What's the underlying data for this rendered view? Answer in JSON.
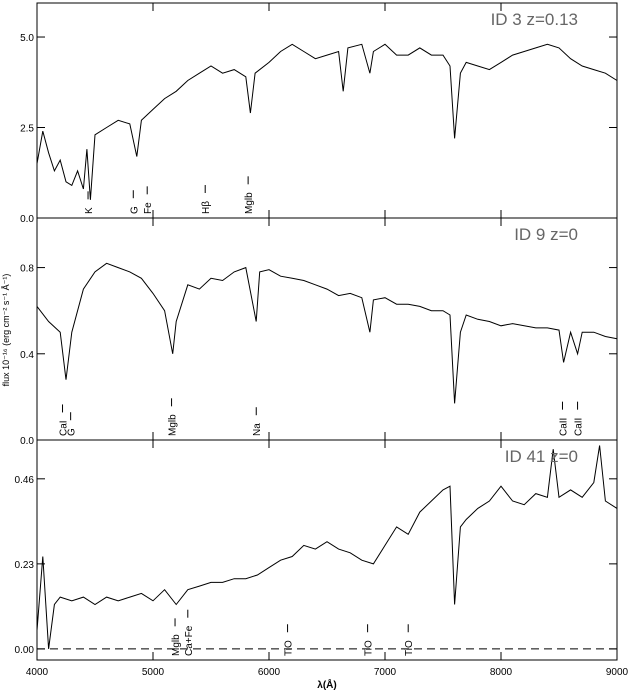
{
  "chart_data": [
    {
      "type": "line",
      "title": "ID 3  z=0.13",
      "color": "#000000",
      "xlim": [
        4000,
        9000
      ],
      "ylim": [
        0,
        5.94
      ],
      "yticks": [
        {
          "value": 0,
          "label": "0.0"
        },
        2.5,
        {
          "value": 5,
          "label": "5.0"
        }
      ],
      "x": [
        4000,
        4050,
        4100,
        4150,
        4200,
        4250,
        4300,
        4350,
        4400,
        4430,
        4460,
        4500,
        4600,
        4700,
        4800,
        4860,
        4900,
        5000,
        5100,
        5200,
        5300,
        5400,
        5500,
        5600,
        5700,
        5800,
        5840,
        5880,
        6000,
        6100,
        6200,
        6300,
        6400,
        6500,
        6600,
        6640,
        6680,
        6800,
        6870,
        6900,
        7000,
        7100,
        7200,
        7300,
        7400,
        7500,
        7560,
        7600,
        7650,
        7700,
        7800,
        7900,
        8000,
        8100,
        8200,
        8300,
        8400,
        8500,
        8600,
        8700,
        8800,
        8900,
        9000
      ],
      "values": [
        1.5,
        2.4,
        1.8,
        1.3,
        1.6,
        1.0,
        0.9,
        1.3,
        0.8,
        1.9,
        0.5,
        2.3,
        2.5,
        2.7,
        2.6,
        1.7,
        2.7,
        3.0,
        3.3,
        3.5,
        3.8,
        4.0,
        4.2,
        4.0,
        4.1,
        3.9,
        2.9,
        4.0,
        4.3,
        4.6,
        4.8,
        4.6,
        4.4,
        4.5,
        4.6,
        3.5,
        4.7,
        4.8,
        4.0,
        4.6,
        4.8,
        4.5,
        4.5,
        4.7,
        4.5,
        4.5,
        4.2,
        2.2,
        4.0,
        4.3,
        4.2,
        4.1,
        4.3,
        4.5,
        4.6,
        4.7,
        4.8,
        4.7,
        4.4,
        4.2,
        4.1,
        4.0,
        3.8
      ],
      "lines": [
        {
          "label": "K",
          "x": 4440
        },
        {
          "label": "G",
          "x": 4830
        },
        {
          "label": "Fe",
          "x": 4950
        },
        {
          "label": "Hβ",
          "x": 5450
        },
        {
          "label": "Mglb",
          "x": 5820
        }
      ]
    },
    {
      "type": "line",
      "title": "ID 9  z=0",
      "color": "#000000",
      "ylabel": "flux 10⁻¹⁶ (erg cm⁻² s⁻¹ Å⁻¹)",
      "xlim": [
        4000,
        9000
      ],
      "ylim": [
        0,
        1.03
      ],
      "yticks": [
        {
          "value": 0,
          "label": "0.0"
        },
        0.4,
        0.8
      ],
      "x": [
        4000,
        4100,
        4200,
        4250,
        4300,
        4400,
        4500,
        4600,
        4700,
        4800,
        4900,
        5000,
        5100,
        5170,
        5200,
        5300,
        5400,
        5500,
        5600,
        5700,
        5800,
        5890,
        5920,
        6000,
        6100,
        6200,
        6300,
        6400,
        6500,
        6600,
        6700,
        6800,
        6870,
        6900,
        7000,
        7100,
        7200,
        7300,
        7400,
        7500,
        7560,
        7600,
        7650,
        7700,
        7800,
        7900,
        8000,
        8100,
        8200,
        8300,
        8400,
        8500,
        8540,
        8600,
        8660,
        8700,
        8800,
        8900,
        9000
      ],
      "values": [
        0.62,
        0.55,
        0.5,
        0.28,
        0.5,
        0.7,
        0.78,
        0.82,
        0.8,
        0.78,
        0.75,
        0.68,
        0.6,
        0.4,
        0.55,
        0.72,
        0.7,
        0.75,
        0.74,
        0.78,
        0.8,
        0.55,
        0.78,
        0.79,
        0.76,
        0.75,
        0.74,
        0.72,
        0.7,
        0.67,
        0.68,
        0.66,
        0.5,
        0.65,
        0.66,
        0.63,
        0.63,
        0.62,
        0.6,
        0.6,
        0.58,
        0.17,
        0.5,
        0.58,
        0.56,
        0.55,
        0.53,
        0.54,
        0.53,
        0.52,
        0.52,
        0.51,
        0.36,
        0.5,
        0.4,
        0.5,
        0.5,
        0.48,
        0.47
      ],
      "lines": [
        {
          "label": "CaI",
          "x": 4220
        },
        {
          "label": "G",
          "x": 4290
        },
        {
          "label": "Mglb",
          "x": 5160
        },
        {
          "label": "Na",
          "x": 5890
        },
        {
          "label": "CaII",
          "x": 8530
        },
        {
          "label": "CaII",
          "x": 8660
        }
      ]
    },
    {
      "type": "line",
      "title": "ID 41  z=0",
      "color": "#000000",
      "xlabel": "λ(Å)",
      "xlim": [
        4000,
        9000
      ],
      "ylim": [
        -0.03,
        0.565
      ],
      "xticks": [
        4000,
        5000,
        6000,
        7000,
        8000,
        9000
      ],
      "yticks": [
        {
          "value": 0,
          "label": "0.00"
        },
        0.23,
        0.46
      ],
      "hline": 0,
      "hline_style": "dashed",
      "x": [
        4000,
        4050,
        4100,
        4150,
        4200,
        4300,
        4400,
        4500,
        4600,
        4700,
        4800,
        4900,
        5000,
        5100,
        5200,
        5300,
        5400,
        5500,
        5600,
        5700,
        5800,
        5900,
        6000,
        6100,
        6200,
        6300,
        6400,
        6500,
        6600,
        6700,
        6800,
        6900,
        7000,
        7100,
        7200,
        7300,
        7400,
        7500,
        7560,
        7600,
        7650,
        7700,
        7800,
        7900,
        8000,
        8100,
        8200,
        8300,
        8400,
        8450,
        8500,
        8600,
        8700,
        8800,
        8850,
        8900,
        9000
      ],
      "values": [
        0.05,
        0.25,
        0.0,
        0.12,
        0.14,
        0.13,
        0.14,
        0.12,
        0.14,
        0.13,
        0.14,
        0.15,
        0.13,
        0.16,
        0.12,
        0.16,
        0.17,
        0.18,
        0.18,
        0.19,
        0.19,
        0.2,
        0.22,
        0.24,
        0.25,
        0.28,
        0.27,
        0.29,
        0.27,
        0.26,
        0.24,
        0.23,
        0.28,
        0.33,
        0.31,
        0.37,
        0.4,
        0.43,
        0.44,
        0.12,
        0.33,
        0.35,
        0.38,
        0.4,
        0.44,
        0.4,
        0.39,
        0.42,
        0.41,
        0.54,
        0.41,
        0.43,
        0.41,
        0.45,
        0.55,
        0.4,
        0.38
      ],
      "lines": [
        {
          "label": "Mglb",
          "x": 5190
        },
        {
          "label": "Ca+Fe",
          "x": 5300
        },
        {
          "label": "TiO",
          "x": 6160
        },
        {
          "label": "TiO",
          "x": 6850
        },
        {
          "label": "TiO",
          "x": 7200
        }
      ]
    }
  ]
}
